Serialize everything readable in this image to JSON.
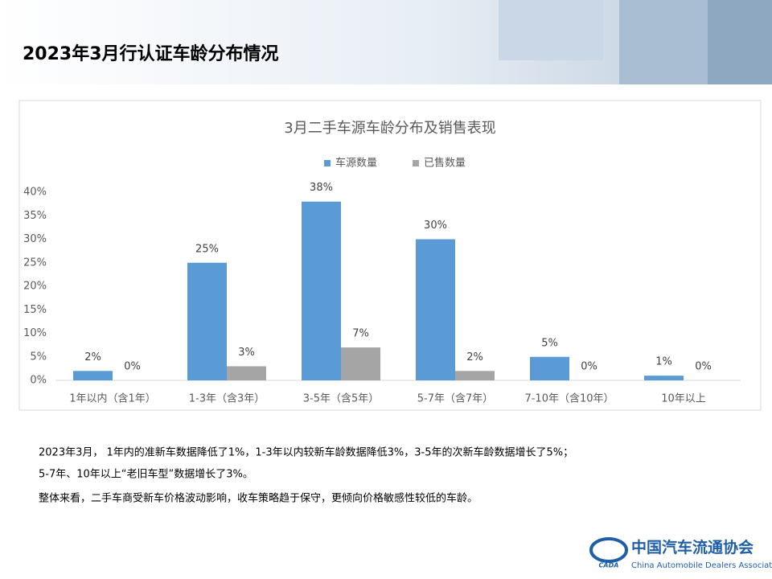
{
  "slide_title": "2023年3月行认证车龄分布情况",
  "chart_data": {
    "type": "bar",
    "title": "3月二手车源车龄分布及销售表现",
    "categories": [
      "1年以内（含1年）",
      "1-3年（含3年）",
      "3-5年（含5年）",
      "5-7年（含7年）",
      "7-10年（含10年）",
      "10年以上"
    ],
    "series": [
      {
        "name": "车源数量",
        "color": "#5b9bd5",
        "values": [
          2,
          25,
          38,
          30,
          5,
          1
        ],
        "value_labels": [
          "2%",
          "25%",
          "38%",
          "30%",
          "5%",
          "1%"
        ]
      },
      {
        "name": "已售数量",
        "color": "#a5a5a5",
        "values": [
          0,
          3,
          7,
          2,
          0,
          0
        ],
        "value_labels": [
          "0%",
          "3%",
          "7%",
          "2%",
          "0%",
          "0%"
        ]
      }
    ],
    "ylim": [
      0,
      40
    ],
    "yticks": [
      {
        "value": 0,
        "label": "0%"
      },
      {
        "value": 5,
        "label": "5%"
      },
      {
        "value": 10,
        "label": "10%"
      },
      {
        "value": 15,
        "label": "15%"
      },
      {
        "value": 20,
        "label": "20%"
      },
      {
        "value": 25,
        "label": "25%"
      },
      {
        "value": 30,
        "label": "30%"
      },
      {
        "value": 35,
        "label": "35%"
      },
      {
        "value": 40,
        "label": "40%"
      }
    ],
    "grid": false,
    "legend": "top"
  },
  "notes": [
    "2023年3月， 1年内的准新车数据降低了1%，1-3年以内较新车龄数据降低3%，3-5年的次新车龄数据增长了5%；",
    "5-7年、10年以上“老旧车型”数据增长了3%。",
    "整体来看，二手车商受新车价格波动影响，收车策略趋于保守，更倾向价格敏感性较低的车龄。"
  ],
  "logo": {
    "mark": "CADA",
    "name": "中国汽车流通协会",
    "english": "China Automobile Dealers Association"
  }
}
